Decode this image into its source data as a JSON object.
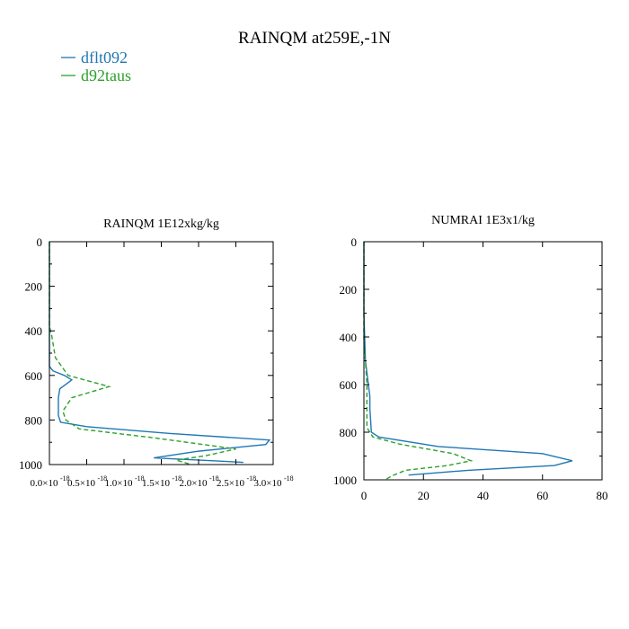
{
  "title": "RAINQM at259E,-1N",
  "legend": [
    {
      "label": "dflt092",
      "color": "#1f77b4",
      "dash": "solid"
    },
    {
      "label": "d92taus",
      "color": "#2ca02c",
      "dash": "dashed"
    }
  ],
  "chart_data": [
    {
      "type": "line",
      "title": "RAINQM  1E12xkg/kg",
      "xlabel": "",
      "ylabel": "",
      "xlim": [
        0,
        3e-18
      ],
      "ylim": [
        1000,
        0
      ],
      "y_inverted": true,
      "grid": false,
      "xticks": [
        0,
        5e-19,
        1e-18,
        1.5e-18,
        2e-18,
        2.5e-18,
        3e-18
      ],
      "xtick_labels": [
        "0.0×10",
        "0.5×10",
        "1.0×10",
        "1.5×10",
        "2.0×10",
        "2.5×10",
        "3.0×10"
      ],
      "xtick_exponent": "-18",
      "yticks": [
        0,
        200,
        400,
        600,
        800,
        1000
      ],
      "ytick_labels": [
        "0",
        "200",
        "400",
        "600",
        "800",
        "1000"
      ],
      "series": [
        {
          "name": "dflt092",
          "color": "#1f77b4",
          "dash": "solid",
          "x": [
            0,
            0,
            0,
            0,
            5e-20,
            2e-19,
            3e-19,
            1.4e-19,
            1.2e-19,
            1.2e-19,
            1.5e-19,
            5e-19,
            1.6e-18,
            2.95e-18,
            2.9e-18,
            2e-18,
            1.4e-18,
            2.6e-18
          ],
          "y": [
            0,
            200,
            400,
            560,
            580,
            600,
            620,
            660,
            700,
            780,
            810,
            830,
            860,
            890,
            910,
            940,
            970,
            990
          ]
        },
        {
          "name": "d92taus",
          "color": "#2ca02c",
          "dash": "dashed",
          "x": [
            0,
            0,
            3e-20,
            8e-20,
            2.5e-19,
            8e-19,
            3e-19,
            1.8e-19,
            2.2e-19,
            4e-19,
            1.4e-18,
            2.5e-18,
            2.1e-18,
            1.7e-18,
            1.9e-18
          ],
          "y": [
            0,
            380,
            420,
            520,
            600,
            650,
            700,
            760,
            800,
            840,
            880,
            930,
            960,
            980,
            1000
          ]
        }
      ]
    },
    {
      "type": "line",
      "title": "NUMRAI  1E3x1/kg",
      "xlabel": "",
      "ylabel": "",
      "xlim": [
        0,
        80
      ],
      "ylim": [
        1000,
        0
      ],
      "y_inverted": true,
      "grid": false,
      "xticks": [
        0,
        20,
        40,
        60,
        80
      ],
      "xtick_labels": [
        "0",
        "20",
        "40",
        "60",
        "80"
      ],
      "yticks": [
        0,
        200,
        400,
        600,
        800,
        1000
      ],
      "ytick_labels": [
        "0",
        "200",
        "400",
        "600",
        "800",
        "1000"
      ],
      "series": [
        {
          "name": "dflt092",
          "color": "#1f77b4",
          "dash": "solid",
          "x": [
            0,
            0,
            0.5,
            1.5,
            2,
            2,
            2.5,
            5,
            25,
            60,
            70,
            64,
            35,
            15
          ],
          "y": [
            0,
            300,
            500,
            600,
            650,
            700,
            800,
            820,
            860,
            890,
            920,
            940,
            960,
            980
          ]
        },
        {
          "name": "d92taus",
          "color": "#2ca02c",
          "dash": "dashed",
          "x": [
            0,
            0,
            0.5,
            1,
            1,
            1,
            3,
            12,
            30,
            36,
            28,
            14,
            10,
            7
          ],
          "y": [
            0,
            420,
            500,
            600,
            700,
            780,
            820,
            850,
            890,
            920,
            940,
            960,
            980,
            1000
          ]
        }
      ]
    }
  ]
}
